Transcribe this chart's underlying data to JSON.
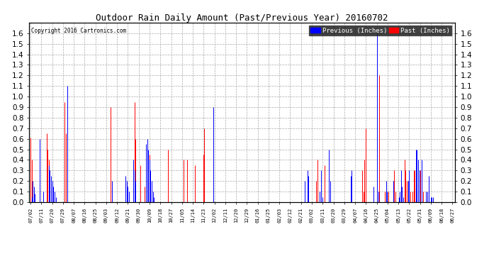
{
  "title": "Outdoor Rain Daily Amount (Past/Previous Year) 20160702",
  "copyright": "Copyright 2016 Cartronics.com",
  "ylim": [
    0.0,
    1.7
  ],
  "yticks": [
    0.0,
    0.1,
    0.2,
    0.3,
    0.4,
    0.5,
    0.6,
    0.7,
    0.8,
    0.9,
    1.0,
    1.1,
    1.2,
    1.3,
    1.4,
    1.5,
    1.6
  ],
  "bg_color": "#ffffff",
  "grid_color": "#aaaaaa",
  "prev_color": "#0000ff",
  "past_color": "#ff0000",
  "xtick_labels": [
    "07/02",
    "07/11",
    "07/20",
    "07/29",
    "08/07",
    "08/16",
    "08/25",
    "09/03",
    "09/12",
    "09/21",
    "09/30",
    "10/09",
    "10/18",
    "10/27",
    "11/05",
    "11/14",
    "11/23",
    "12/02",
    "12/11",
    "12/20",
    "12/29",
    "01/16",
    "01/25",
    "02/03",
    "02/12",
    "02/21",
    "03/02",
    "03/11",
    "03/20",
    "03/29",
    "04/07",
    "04/16",
    "04/25",
    "05/04",
    "05/13",
    "05/22",
    "05/31",
    "06/09",
    "06/18",
    "06/27"
  ],
  "prev_data": [
    0.0,
    0.05,
    0.2,
    0.15,
    0.08,
    0.0,
    0.0,
    0.0,
    0.6,
    0.0,
    0.0,
    0.1,
    0.0,
    0.0,
    0.0,
    0.0,
    0.35,
    0.3,
    0.25,
    0.2,
    0.15,
    0.1,
    0.05,
    0.0,
    0.0,
    0.0,
    0.0,
    0.0,
    0.0,
    0.0,
    0.0,
    0.0,
    1.1,
    0.0,
    0.0,
    0.0,
    0.0,
    0.0,
    0.0,
    0.0,
    0.0,
    0.0,
    0.0,
    0.0,
    0.0,
    0.0,
    0.0,
    0.0,
    0.0,
    0.0,
    0.0,
    0.0,
    0.0,
    0.0,
    0.0,
    0.0,
    0.0,
    0.0,
    0.0,
    0.0,
    0.0,
    0.0,
    0.0,
    0.0,
    0.0,
    0.0,
    0.0,
    0.0,
    0.0,
    0.0,
    0.0,
    0.2,
    0.0,
    0.0,
    0.0,
    0.0,
    0.0,
    0.0,
    0.0,
    0.0,
    0.0,
    0.0,
    0.0,
    0.25,
    0.2,
    0.15,
    0.1,
    0.0,
    0.0,
    0.0,
    0.4,
    0.3,
    0.2,
    0.0,
    0.0,
    0.0,
    0.0,
    0.0,
    0.0,
    0.0,
    0.0,
    0.55,
    0.6,
    0.5,
    0.4,
    0.3,
    0.2,
    0.1,
    0.05,
    0.0,
    0.0,
    0.0,
    0.0,
    0.0,
    0.0,
    0.0,
    0.0,
    0.0,
    0.0,
    0.0,
    0.0,
    0.0,
    0.0,
    0.0,
    0.0,
    0.0,
    0.0,
    0.0,
    0.0,
    0.0,
    0.0,
    0.0,
    0.0,
    0.0,
    0.0,
    0.0,
    0.0,
    0.0,
    0.0,
    0.0,
    0.0,
    0.0,
    0.0,
    0.0,
    0.0,
    0.0,
    0.0,
    0.0,
    0.0,
    0.0,
    0.0,
    0.0,
    0.0,
    0.0,
    0.0,
    0.0,
    0.0,
    0.0,
    0.0,
    0.0,
    0.9,
    0.0,
    0.0,
    0.0,
    0.0,
    0.0,
    0.0,
    0.0,
    0.0,
    0.0,
    0.0,
    0.0,
    0.0,
    0.0,
    0.0,
    0.0,
    0.0,
    0.0,
    0.0,
    0.0,
    0.0,
    0.0,
    0.0,
    0.0,
    0.0,
    0.0,
    0.0,
    0.0,
    0.0,
    0.0,
    0.0,
    0.0,
    0.0,
    0.0,
    0.0,
    0.0,
    0.0,
    0.0,
    0.0,
    0.0,
    0.0,
    0.0,
    0.0,
    0.0,
    0.0,
    0.0,
    0.0,
    0.0,
    0.0,
    0.0,
    0.0,
    0.0,
    0.0,
    0.0,
    0.0,
    0.0,
    0.0,
    0.0,
    0.0,
    0.0,
    0.0,
    0.0,
    0.0,
    0.0,
    0.0,
    0.0,
    0.0,
    0.0,
    0.0,
    0.0,
    0.0,
    0.0,
    0.0,
    0.0,
    0.0,
    0.0,
    0.0,
    0.0,
    0.0,
    0.0,
    0.2,
    0.0,
    0.3,
    0.25,
    0.0,
    0.0,
    0.0,
    0.0,
    0.0,
    0.0,
    0.0,
    0.0,
    0.0,
    0.1,
    0.3,
    0.05,
    0.0,
    0.0,
    0.0,
    0.0,
    0.0,
    0.5,
    0.2,
    0.0,
    0.0,
    0.0,
    0.0,
    0.0,
    0.0,
    0.0,
    0.0,
    0.0,
    0.0,
    0.0,
    0.0,
    0.0,
    0.0,
    0.0,
    0.0,
    0.0,
    0.25,
    0.3,
    0.0,
    0.0,
    0.0,
    0.0,
    0.0,
    0.0,
    0.0,
    0.0,
    0.0,
    0.0,
    0.0,
    0.0,
    0.0,
    0.0,
    0.0,
    0.0,
    0.0,
    0.0,
    0.15,
    0.0,
    0.0,
    1.6,
    0.1,
    0.0,
    0.0,
    0.0,
    0.0,
    0.0,
    0.0,
    0.2,
    0.1,
    0.0,
    0.0,
    0.0,
    0.0,
    0.2,
    0.0,
    0.0,
    0.0,
    0.0,
    0.05,
    0.1,
    0.3,
    0.15,
    0.05,
    0.0,
    0.0,
    0.0,
    0.2,
    0.3,
    0.0,
    0.0,
    0.0,
    0.0,
    0.0,
    0.5,
    0.5,
    0.4,
    0.3,
    0.0,
    0.4,
    0.0,
    0.0,
    0.0,
    0.1,
    0.1,
    0.25,
    0.0,
    0.05,
    0.05,
    0.05,
    0.0,
    0.0,
    0.0,
    0.0,
    0.0,
    0.0,
    0.0,
    0.0,
    0.0,
    0.0,
    0.0,
    0.0,
    0.0,
    0.0,
    0.0,
    0.0,
    0.0
  ],
  "past_data": [
    0.61,
    0.4,
    0.0,
    0.0,
    0.0,
    0.0,
    0.0,
    0.0,
    0.0,
    0.0,
    0.0,
    0.0,
    0.0,
    0.0,
    0.65,
    0.5,
    0.4,
    0.3,
    0.2,
    0.1,
    0.05,
    0.0,
    0.0,
    0.0,
    0.0,
    0.0,
    0.0,
    0.0,
    0.0,
    0.0,
    0.95,
    0.65,
    0.0,
    0.0,
    0.0,
    0.0,
    0.0,
    0.0,
    0.0,
    0.0,
    0.0,
    0.0,
    0.0,
    0.0,
    0.0,
    0.0,
    0.0,
    0.0,
    0.0,
    0.0,
    0.0,
    0.0,
    0.0,
    0.0,
    0.0,
    0.0,
    0.0,
    0.0,
    0.0,
    0.0,
    0.0,
    0.0,
    0.0,
    0.0,
    0.0,
    0.0,
    0.0,
    0.0,
    0.0,
    0.0,
    0.9,
    0.0,
    0.0,
    0.0,
    0.0,
    0.0,
    0.0,
    0.0,
    0.0,
    0.0,
    0.0,
    0.0,
    0.0,
    0.0,
    0.0,
    0.0,
    0.0,
    0.0,
    0.0,
    0.0,
    0.0,
    0.95,
    0.6,
    0.0,
    0.0,
    0.0,
    0.35,
    0.0,
    0.0,
    0.0,
    0.15,
    0.0,
    0.0,
    0.0,
    0.45,
    0.0,
    0.0,
    0.0,
    0.0,
    0.0,
    0.0,
    0.0,
    0.0,
    0.0,
    0.0,
    0.0,
    0.0,
    0.0,
    0.0,
    0.0,
    0.5,
    0.0,
    0.0,
    0.0,
    0.0,
    0.0,
    0.0,
    0.0,
    0.0,
    0.0,
    0.0,
    0.0,
    0.0,
    0.0,
    0.4,
    0.0,
    0.0,
    0.4,
    0.0,
    0.0,
    0.0,
    0.0,
    0.0,
    0.0,
    0.35,
    0.0,
    0.0,
    0.0,
    0.0,
    0.0,
    0.0,
    0.45,
    0.7,
    0.0,
    0.0,
    0.0,
    0.0,
    0.0,
    0.0,
    0.0,
    0.0,
    0.0,
    0.0,
    0.0,
    0.0,
    0.0,
    0.0,
    0.0,
    0.0,
    0.0,
    0.0,
    0.0,
    0.0,
    0.0,
    0.0,
    0.0,
    0.0,
    0.0,
    0.0,
    0.0,
    0.0,
    0.0,
    0.0,
    0.0,
    0.0,
    0.0,
    0.0,
    0.0,
    0.0,
    0.0,
    0.0,
    0.0,
    0.0,
    0.0,
    0.0,
    0.0,
    0.0,
    0.0,
    0.0,
    0.0,
    0.0,
    0.0,
    0.0,
    0.0,
    0.0,
    0.0,
    0.0,
    0.0,
    0.0,
    0.0,
    0.0,
    0.0,
    0.0,
    0.0,
    0.0,
    0.0,
    0.0,
    0.0,
    0.0,
    0.0,
    0.0,
    0.0,
    0.0,
    0.0,
    0.0,
    0.0,
    0.0,
    0.0,
    0.0,
    0.0,
    0.0,
    0.0,
    0.0,
    0.0,
    0.0,
    0.0,
    0.0,
    0.0,
    0.0,
    0.0,
    0.0,
    0.0,
    0.0,
    0.1,
    0.0,
    0.0,
    0.0,
    0.0,
    0.0,
    0.0,
    0.2,
    0.4,
    0.0,
    0.0,
    0.0,
    0.0,
    0.0,
    0.35,
    0.0,
    0.0,
    0.0,
    0.0,
    0.0,
    0.0,
    0.0,
    0.0,
    0.0,
    0.0,
    0.0,
    0.0,
    0.0,
    0.0,
    0.0,
    0.0,
    0.0,
    0.0,
    0.0,
    0.0,
    0.0,
    0.0,
    0.0,
    0.0,
    0.0,
    0.0,
    0.0,
    0.0,
    0.0,
    0.0,
    0.0,
    0.0,
    0.3,
    0.1,
    0.4,
    0.7,
    0.0,
    0.0,
    0.0,
    0.0,
    0.0,
    0.0,
    0.0,
    0.0,
    0.0,
    0.0,
    0.1,
    1.2,
    0.0,
    0.0,
    0.0,
    0.0,
    0.1,
    0.0,
    0.0,
    0.1,
    0.0,
    0.0,
    0.0,
    0.1,
    0.3,
    0.1,
    0.0,
    0.0,
    0.0,
    0.0,
    0.2,
    0.0,
    0.0,
    0.4,
    0.3,
    0.2,
    0.2,
    0.2,
    0.1,
    0.0,
    0.1,
    0.3,
    0.3,
    0.15,
    0.1,
    0.1,
    0.05,
    0.3,
    0.3,
    0.1,
    0.0,
    0.0,
    0.0,
    0.0,
    0.0,
    0.0,
    0.0,
    0.0,
    0.0,
    0.0,
    0.0,
    0.0,
    0.0,
    0.0,
    0.0,
    0.0,
    0.0,
    0.0,
    0.0,
    0.0,
    0.0,
    0.0,
    0.0,
    0.0,
    0.0,
    0.0
  ]
}
